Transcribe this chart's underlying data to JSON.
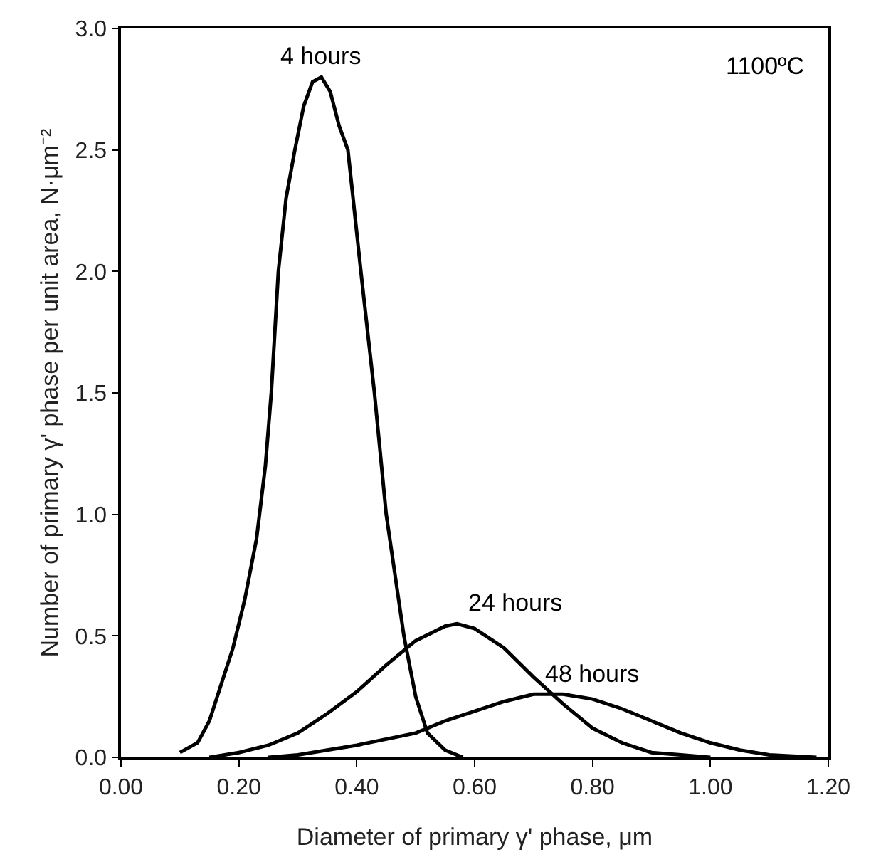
{
  "chart_data": {
    "type": "line",
    "xlabel": "Diameter of primary γ' phase, μm",
    "ylabel": "Number of primary γ' phase per unit area, N·μm⁻²",
    "annotations": [
      "1100ºC"
    ],
    "xlim": [
      0,
      1.2
    ],
    "ylim": [
      0,
      3
    ],
    "xticks": [
      {
        "value": 0,
        "label": "0.00"
      },
      {
        "value": 0.2,
        "label": "0.20"
      },
      {
        "value": 0.4,
        "label": "0.40"
      },
      {
        "value": 0.6,
        "label": "0.60"
      },
      {
        "value": 0.8,
        "label": "0.80"
      },
      {
        "value": 1,
        "label": "1.00"
      },
      {
        "value": 1.2,
        "label": "1.20"
      }
    ],
    "yticks": [
      {
        "value": 0,
        "label": "0.0"
      },
      {
        "value": 0.5,
        "label": "0.5"
      },
      {
        "value": 1,
        "label": "1.0"
      },
      {
        "value": 1.5,
        "label": "1.5"
      },
      {
        "value": 2,
        "label": "2.0"
      },
      {
        "value": 2.5,
        "label": "2.5"
      },
      {
        "value": 3,
        "label": "3.0"
      }
    ],
    "grid": false,
    "legend": false,
    "marker": "none",
    "line_style": "solid",
    "series": [
      {
        "name": "4 hours",
        "color": "#000000",
        "x": [
          0.1,
          0.13,
          0.15,
          0.17,
          0.19,
          0.21,
          0.23,
          0.245,
          0.255,
          0.267,
          0.28,
          0.295,
          0.31,
          0.325,
          0.34,
          0.355,
          0.37,
          0.385,
          0.407,
          0.43,
          0.45,
          0.48,
          0.5,
          0.52,
          0.55,
          0.58
        ],
        "values": [
          0.02,
          0.06,
          0.15,
          0.3,
          0.45,
          0.65,
          0.9,
          1.2,
          1.5,
          2.0,
          2.3,
          2.5,
          2.68,
          2.78,
          2.8,
          2.74,
          2.6,
          2.5,
          2.0,
          1.5,
          1.0,
          0.5,
          0.25,
          0.1,
          0.03,
          0
        ]
      },
      {
        "name": "24 hours",
        "color": "#000000",
        "x": [
          0.15,
          0.2,
          0.25,
          0.3,
          0.35,
          0.4,
          0.45,
          0.5,
          0.55,
          0.57,
          0.6,
          0.65,
          0.7,
          0.75,
          0.8,
          0.85,
          0.9,
          0.95,
          1.0
        ],
        "values": [
          0,
          0.02,
          0.05,
          0.1,
          0.18,
          0.27,
          0.38,
          0.48,
          0.54,
          0.55,
          0.53,
          0.45,
          0.33,
          0.22,
          0.12,
          0.06,
          0.02,
          0.01,
          0
        ]
      },
      {
        "name": "48 hours",
        "color": "#000000",
        "x": [
          0.25,
          0.3,
          0.4,
          0.5,
          0.55,
          0.6,
          0.65,
          0.7,
          0.75,
          0.8,
          0.85,
          0.9,
          0.95,
          1.0,
          1.05,
          1.1,
          1.18
        ],
        "values": [
          0,
          0.01,
          0.05,
          0.1,
          0.15,
          0.19,
          0.23,
          0.26,
          0.26,
          0.24,
          0.2,
          0.15,
          0.1,
          0.06,
          0.03,
          0.01,
          0
        ]
      }
    ]
  }
}
